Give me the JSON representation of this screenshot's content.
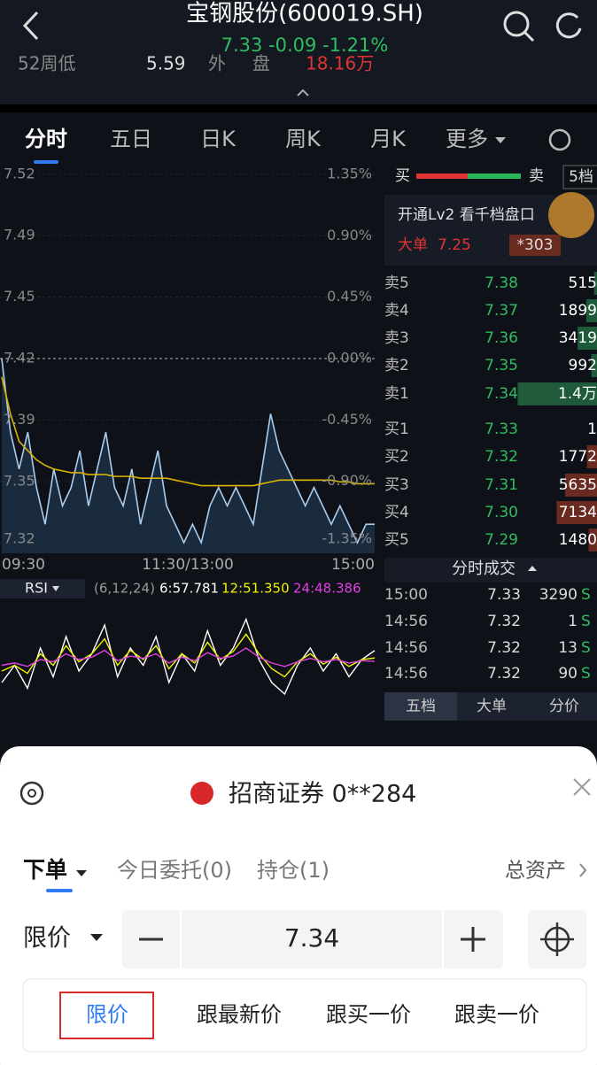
{
  "header": {
    "title": "宝钢股份(600019.SH)",
    "quote": "7.33 -0.09 -1.21%",
    "stats": [
      "52周低",
      "5.59",
      "外",
      "盘",
      "18.16万"
    ]
  },
  "tabs": [
    "分时",
    "五日",
    "日K",
    "周K",
    "月K",
    "更多"
  ],
  "chart_data": [
    {
      "type": "line",
      "x_labels": [
        "09:30",
        "11:30/13:00",
        "15:00"
      ],
      "series": [
        {
          "name": "price",
          "color": "#a9cdf0",
          "values": [
            7.42,
            7.38,
            7.36,
            7.38,
            7.35,
            7.33,
            7.36,
            7.34,
            7.35,
            7.37,
            7.34,
            7.36,
            7.38,
            7.35,
            7.34,
            7.36,
            7.33,
            7.35,
            7.37,
            7.34,
            7.33,
            7.32,
            7.33,
            7.32,
            7.34,
            7.35,
            7.34,
            7.35,
            7.34,
            7.33,
            7.36,
            7.39,
            7.37,
            7.36,
            7.35,
            7.34,
            7.35,
            7.34,
            7.33,
            7.34,
            7.33,
            7.32,
            7.33,
            7.33
          ]
        },
        {
          "name": "average",
          "color": "#d9b400",
          "values": [
            7.41,
            7.39,
            7.375,
            7.37,
            7.365,
            7.362,
            7.36,
            7.359,
            7.358,
            7.358,
            7.357,
            7.357,
            7.357,
            7.356,
            7.356,
            7.356,
            7.355,
            7.355,
            7.355,
            7.355,
            7.354,
            7.353,
            7.352,
            7.351,
            7.351,
            7.351,
            7.351,
            7.351,
            7.351,
            7.351,
            7.352,
            7.353,
            7.354,
            7.354,
            7.354,
            7.354,
            7.354,
            7.354,
            7.354,
            7.353,
            7.353,
            7.352,
            7.352,
            7.352
          ]
        }
      ],
      "ylim": [
        7.32,
        7.52
      ],
      "yticks": [
        {
          "value": 7.52,
          "label": "7.52"
        },
        {
          "value": 7.4868,
          "label": "7.49"
        },
        {
          "value": 7.4534,
          "label": "7.45"
        },
        {
          "value": 7.42,
          "label": "7.42"
        },
        {
          "value": 7.3866,
          "label": "7.39"
        },
        {
          "value": 7.3532,
          "label": "7.35"
        },
        {
          "value": 7.32,
          "label": "7.32"
        }
      ],
      "y2lim": [
        -1.35,
        1.35
      ],
      "y2ticks": [
        {
          "value": 1.35,
          "label": "1.35%"
        },
        {
          "value": 0.9,
          "label": "0.90%"
        },
        {
          "value": 0.45,
          "label": "0.45%"
        },
        {
          "value": 0,
          "label": "0.00%"
        },
        {
          "value": -0.45,
          "label": "-0.45%"
        },
        {
          "value": -0.9,
          "label": "-0.90%"
        },
        {
          "value": -1.35,
          "label": "-1.35%"
        }
      ]
    },
    {
      "type": "line",
      "title": "RSI",
      "params": "(6,12,24)",
      "ylim": [
        0,
        100
      ],
      "series": [
        {
          "name": "6:57.781",
          "color": "#ffffff",
          "values": [
            30,
            45,
            25,
            60,
            35,
            70,
            40,
            55,
            80,
            35,
            60,
            45,
            70,
            30,
            55,
            40,
            75,
            45,
            60,
            85,
            50,
            30,
            20,
            45,
            60,
            40,
            55,
            35,
            50,
            57.781
          ]
        },
        {
          "name": "12:51.350",
          "color": "#f2f200",
          "values": [
            40,
            45,
            38,
            55,
            45,
            62,
            48,
            55,
            68,
            45,
            58,
            50,
            62,
            42,
            55,
            47,
            65,
            50,
            57,
            72,
            55,
            42,
            35,
            48,
            55,
            46,
            52,
            44,
            50,
            51.35
          ]
        },
        {
          "name": "24:48.386",
          "color": "#e040e0",
          "values": [
            45,
            47,
            44,
            50,
            48,
            55,
            50,
            52,
            58,
            49,
            53,
            51,
            55,
            47,
            52,
            49,
            56,
            51,
            53,
            60,
            52,
            47,
            44,
            48,
            51,
            48,
            50,
            47,
            49,
            48.386
          ]
        }
      ]
    }
  ],
  "order_book": {
    "buy": "买",
    "sell": "卖",
    "depth": "5档",
    "promo": "开通Lv2 看千档盘口",
    "big_order": {
      "label": "大单",
      "price": "7.25",
      "volume": "*303"
    },
    "asks": [
      {
        "label": "卖5",
        "price": "7.38",
        "volume": 515
      },
      {
        "label": "卖4",
        "price": "7.37",
        "volume": 1899
      },
      {
        "label": "卖3",
        "price": "7.36",
        "volume": 3419
      },
      {
        "label": "卖2",
        "price": "7.35",
        "volume": 992
      },
      {
        "label": "卖1",
        "price": "7.34",
        "volume": 14000,
        "volume_label": "1.4万"
      }
    ],
    "bids": [
      {
        "label": "买1",
        "price": "7.33",
        "volume": 1
      },
      {
        "label": "买2",
        "price": "7.32",
        "volume": 1772
      },
      {
        "label": "买3",
        "price": "7.31",
        "volume": 5635
      },
      {
        "label": "买4",
        "price": "7.30",
        "volume": 7134
      },
      {
        "label": "买5",
        "price": "7.29",
        "volume": 1480
      }
    ],
    "trades_title": "分时成交",
    "trades": [
      [
        "15:00",
        "7.33",
        "3290",
        "S"
      ],
      [
        "14:56",
        "7.32",
        "1",
        "S"
      ],
      [
        "14:56",
        "7.32",
        "13",
        "S"
      ],
      [
        "14:56",
        "7.32",
        "90",
        "S"
      ]
    ],
    "tabs": [
      "五档",
      "大单",
      "分价"
    ]
  },
  "order_sheet": {
    "broker": "招商证券 0**284",
    "tabs": [
      "下单",
      "今日委托(0)",
      "持仓(1)"
    ],
    "total_assets": "总资产",
    "order_type": "限价",
    "price": "7.34",
    "price_options": [
      "限价",
      "跟最新价",
      "跟买一价",
      "跟卖一价"
    ]
  }
}
